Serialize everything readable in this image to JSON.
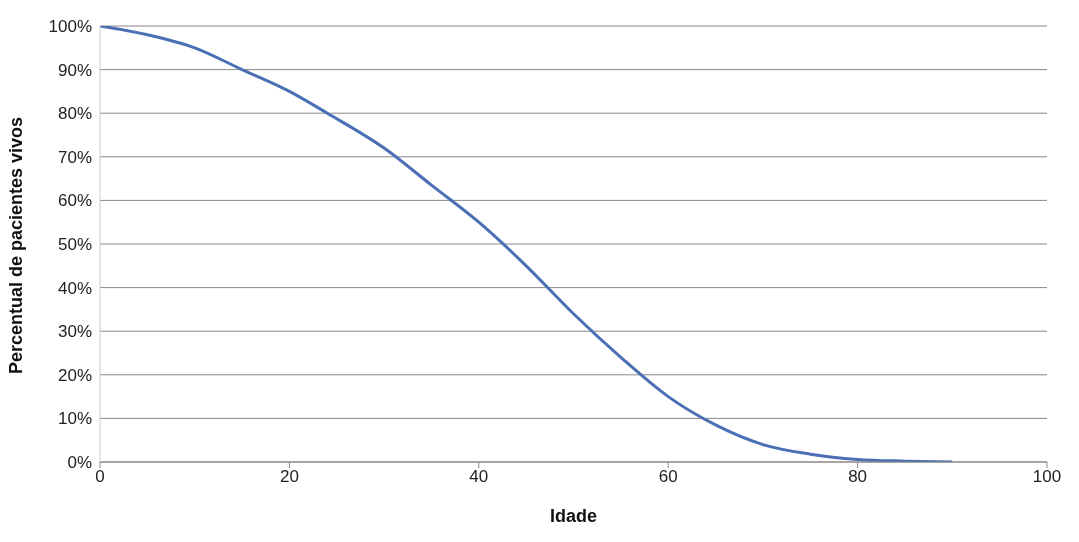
{
  "chart_data": {
    "type": "line",
    "xlabel": "Idade",
    "ylabel": "Percentual de pacientes vivos",
    "x": [
      0,
      5,
      10,
      15,
      20,
      24,
      30,
      35,
      40,
      45,
      50,
      55,
      60,
      65,
      70,
      75,
      80,
      85,
      90
    ],
    "series": [
      {
        "color": "#4a6fb5",
        "values": [
          100,
          98,
          95,
          90,
          85,
          80,
          72,
          63.5,
          55,
          45,
          34,
          24,
          15,
          8.5,
          4,
          1.8,
          0.6,
          0.2,
          0
        ]
      }
    ],
    "xlim": [
      0,
      100
    ],
    "xticks": [
      0,
      20,
      40,
      60,
      80,
      100
    ],
    "ylim": [
      0,
      100
    ],
    "yticks": [
      {
        "value": 0,
        "label": "0%"
      },
      {
        "value": 10,
        "label": "10%"
      },
      {
        "value": 20,
        "label": "20%"
      },
      {
        "value": 30,
        "label": "30%"
      },
      {
        "value": 40,
        "label": "40%"
      },
      {
        "value": 50,
        "label": "50%"
      },
      {
        "value": 60,
        "label": "60%"
      },
      {
        "value": 70,
        "label": "70%"
      },
      {
        "value": 80,
        "label": "80%"
      },
      {
        "value": 90,
        "label": "90%"
      },
      {
        "value": 100,
        "label": "100%"
      }
    ],
    "grid": "y",
    "marker": "none",
    "line_style": "solid"
  }
}
